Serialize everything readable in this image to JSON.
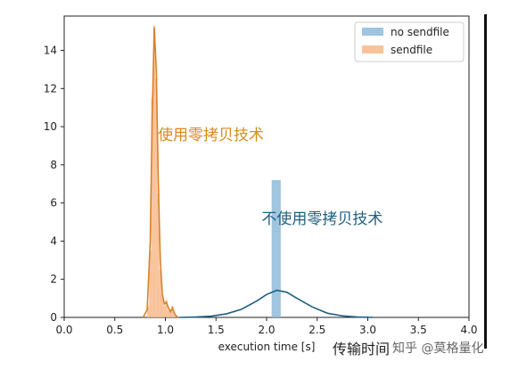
{
  "chart_data": {
    "type": "bar",
    "xlabel": "execution time [s]",
    "ylabel": "",
    "xlim": [
      0.0,
      4.0
    ],
    "ylim": [
      0,
      15.8
    ],
    "xticks": [
      "0.0",
      "0.5",
      "1.0",
      "1.5",
      "2.0",
      "2.5",
      "3.0",
      "3.5",
      "4.0"
    ],
    "yticks": [
      "0",
      "2",
      "4",
      "6",
      "8",
      "10",
      "12",
      "14"
    ],
    "grid": false,
    "legend_position": "top-right",
    "series": [
      {
        "name": "no sendfile",
        "color": "#8ebbd9",
        "line_color": "#1f5f80",
        "hist_bins": [
          {
            "x0": 2.05,
            "x1": 2.14,
            "value": 7.2
          }
        ],
        "kde": [
          [
            1.15,
            0.0
          ],
          [
            1.3,
            0.02
          ],
          [
            1.45,
            0.06
          ],
          [
            1.6,
            0.18
          ],
          [
            1.75,
            0.42
          ],
          [
            1.9,
            0.85
          ],
          [
            2.0,
            1.2
          ],
          [
            2.1,
            1.42
          ],
          [
            2.2,
            1.32
          ],
          [
            2.3,
            1.0
          ],
          [
            2.45,
            0.55
          ],
          [
            2.6,
            0.22
          ],
          [
            2.75,
            0.08
          ],
          [
            2.9,
            0.02
          ],
          [
            3.05,
            0.0
          ]
        ]
      },
      {
        "name": "sendfile",
        "color": "#f7b98a",
        "line_color": "#d9812a",
        "hist_bins": [
          {
            "x0": 0.82,
            "x1": 0.84,
            "value": 0.6
          },
          {
            "x0": 0.84,
            "x1": 0.86,
            "value": 3.5
          },
          {
            "x0": 0.86,
            "x1": 0.88,
            "value": 11.5
          },
          {
            "x0": 0.88,
            "x1": 0.9,
            "value": 15.3
          },
          {
            "x0": 0.9,
            "x1": 0.92,
            "value": 12.5
          },
          {
            "x0": 0.92,
            "x1": 0.94,
            "value": 6.5
          },
          {
            "x0": 0.94,
            "x1": 0.96,
            "value": 2.5
          },
          {
            "x0": 0.96,
            "x1": 0.98,
            "value": 1.2
          },
          {
            "x0": 0.98,
            "x1": 1.0,
            "value": 0.6
          },
          {
            "x0": 1.0,
            "x1": 1.02,
            "value": 0.9
          },
          {
            "x0": 1.02,
            "x1": 1.04,
            "value": 0.4
          },
          {
            "x0": 1.04,
            "x1": 1.06,
            "value": 0.3
          },
          {
            "x0": 1.06,
            "x1": 1.08,
            "value": 0.6
          },
          {
            "x0": 1.08,
            "x1": 1.1,
            "value": 0.2
          }
        ],
        "kde": [
          [
            0.78,
            0.0
          ],
          [
            0.82,
            0.4
          ],
          [
            0.85,
            4.0
          ],
          [
            0.87,
            10.5
          ],
          [
            0.89,
            15.2
          ],
          [
            0.91,
            13.0
          ],
          [
            0.93,
            7.0
          ],
          [
            0.95,
            3.0
          ],
          [
            0.97,
            1.2
          ],
          [
            0.99,
            0.7
          ],
          [
            1.01,
            0.8
          ],
          [
            1.03,
            0.5
          ],
          [
            1.05,
            0.3
          ],
          [
            1.07,
            0.5
          ],
          [
            1.09,
            0.2
          ],
          [
            1.12,
            0.0
          ]
        ]
      }
    ],
    "annotations": [
      {
        "text": "使用零拷贝技术",
        "color": "#d98a1f",
        "x": 1.45,
        "y": 9.3
      },
      {
        "text": "不使用零拷贝技术",
        "color": "#1f5f80",
        "x": 2.55,
        "y": 4.9
      }
    ]
  },
  "watermark": {
    "text": "传输时间",
    "source": "知乎 @莫格量化"
  }
}
